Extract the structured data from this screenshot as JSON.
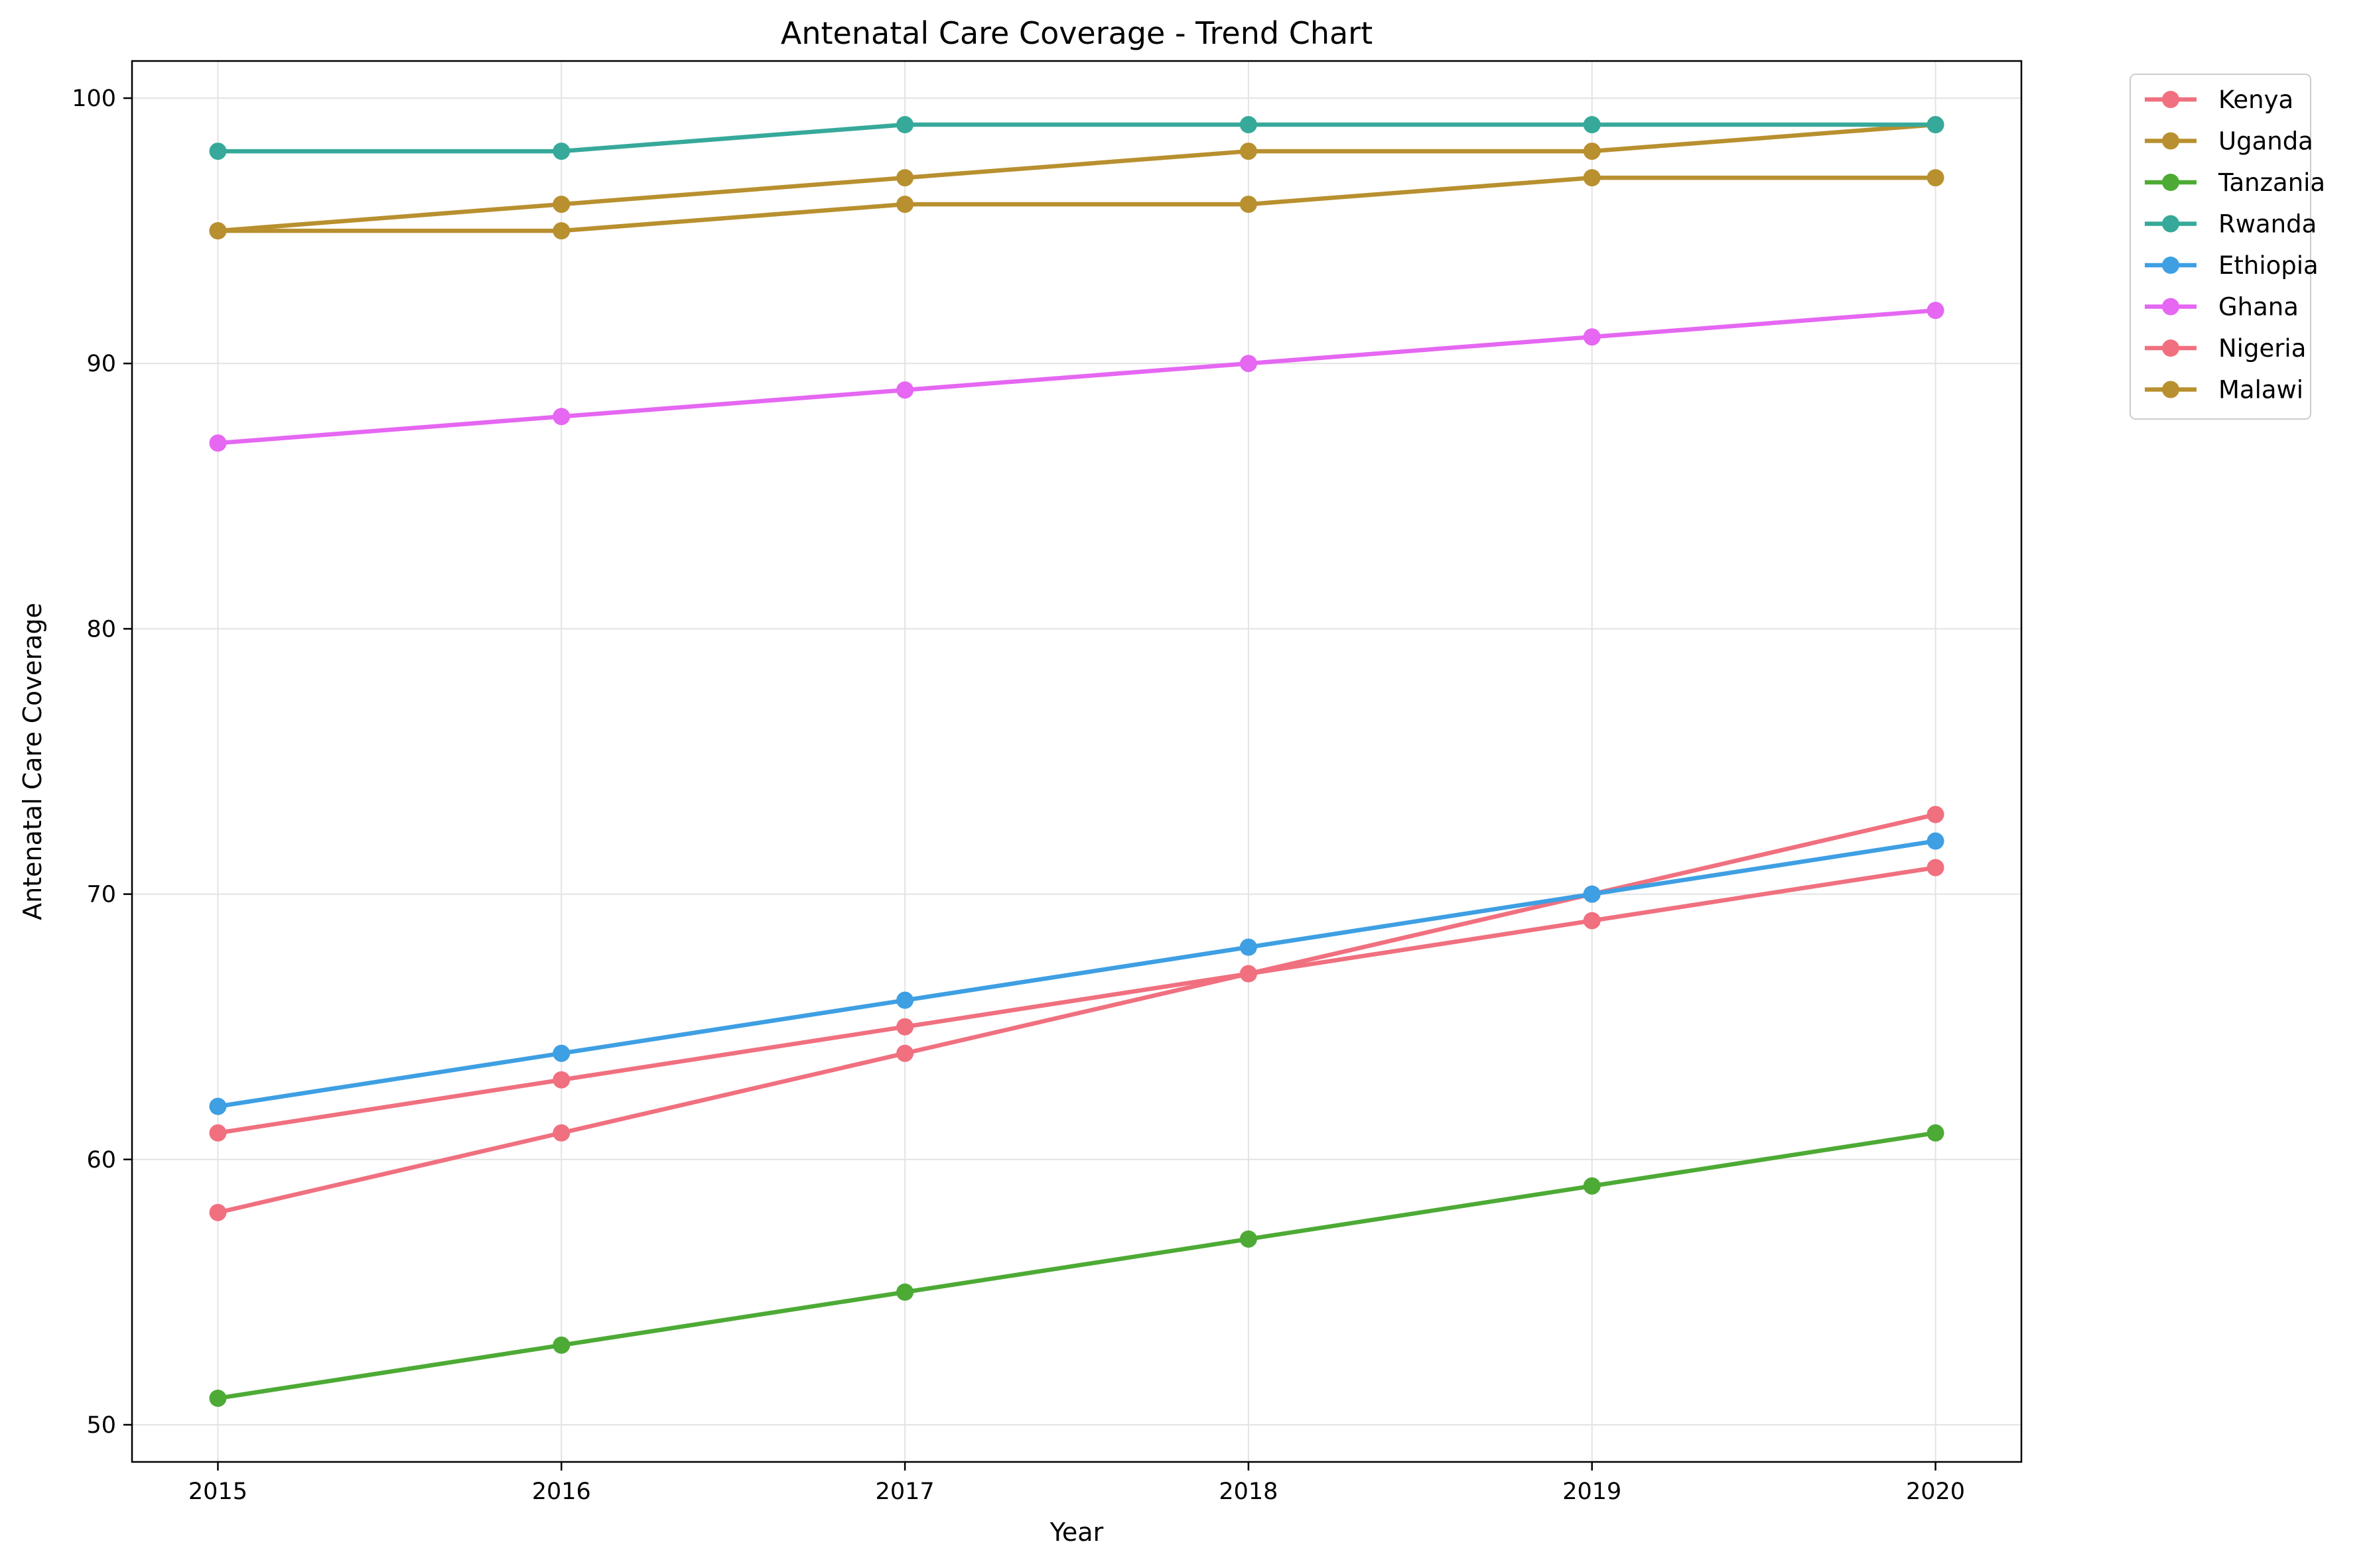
{
  "chart_data": {
    "type": "line",
    "title": "Antenatal Care Coverage - Trend Chart",
    "xlabel": "Year",
    "ylabel": "Antenatal Care Coverage",
    "x": [
      2015,
      2016,
      2017,
      2018,
      2019,
      2020
    ],
    "xlim": [
      2014.75,
      2020.25
    ],
    "ylim": [
      48.6,
      101.4
    ],
    "yticks": [
      50,
      60,
      70,
      80,
      90,
      100
    ],
    "grid": true,
    "legend_position": "outside-top-right",
    "series": [
      {
        "name": "Kenya",
        "color": "#f0707f",
        "values": [
          58,
          61,
          64,
          67,
          70,
          73
        ]
      },
      {
        "name": "Uganda",
        "color": "#b8902f",
        "values": [
          95,
          96,
          97,
          98,
          98,
          99
        ]
      },
      {
        "name": "Tanzania",
        "color": "#4daa35",
        "values": [
          51,
          53,
          55,
          57,
          59,
          61
        ]
      },
      {
        "name": "Rwanda",
        "color": "#36a99a",
        "values": [
          98,
          98,
          99,
          99,
          99,
          99
        ]
      },
      {
        "name": "Ethiopia",
        "color": "#3e9fe3",
        "values": [
          62,
          64,
          66,
          68,
          70,
          72
        ]
      },
      {
        "name": "Ghana",
        "color": "#e567f2",
        "values": [
          87,
          88,
          89,
          90,
          91,
          92
        ]
      },
      {
        "name": "Nigeria",
        "color": "#f0707f",
        "values": [
          61,
          63,
          65,
          67,
          69,
          71
        ]
      },
      {
        "name": "Malawi",
        "color": "#b8902f",
        "values": [
          95,
          95,
          96,
          96,
          97,
          97
        ]
      }
    ]
  }
}
